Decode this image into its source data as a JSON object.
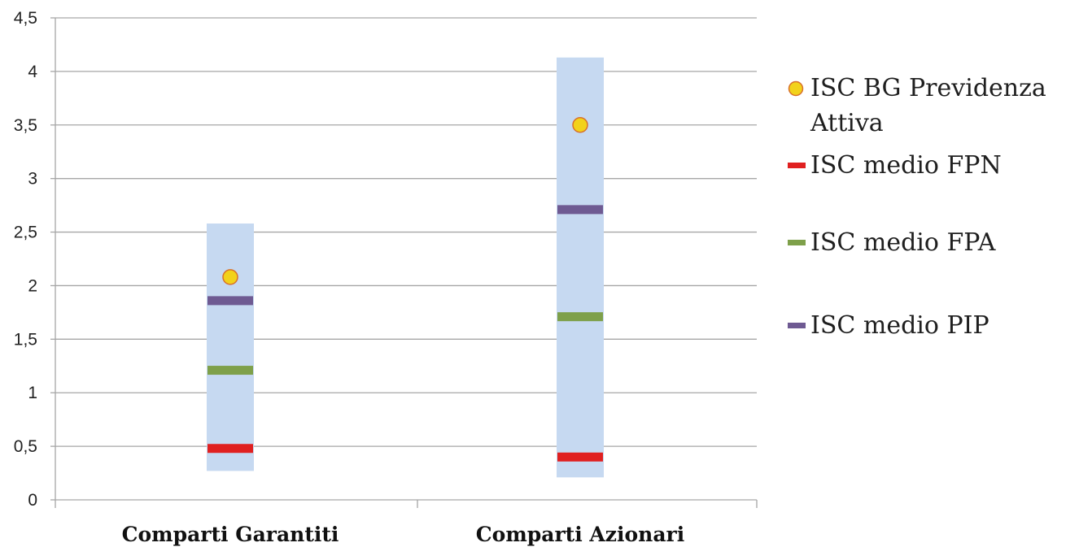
{
  "chart_data": {
    "type": "range",
    "categories": [
      "Comparti Garantiti",
      "Comparti Azionari"
    ],
    "ylim": [
      0,
      4.5
    ],
    "yticks": [
      "0",
      "0,5",
      "1",
      "1,5",
      "2",
      "2,5",
      "3",
      "3,5",
      "4",
      "4,5"
    ],
    "ytick_values": [
      0,
      0.5,
      1,
      1.5,
      2,
      2.5,
      3,
      3.5,
      4,
      4.5
    ],
    "grid": true,
    "legend_position": "right",
    "ranges": [
      {
        "category": "Comparti Garantiti",
        "min": 0.27,
        "max": 2.58
      },
      {
        "category": "Comparti Azionari",
        "min": 0.21,
        "max": 4.13
      }
    ],
    "series": [
      {
        "name": "ISC BG Previdenza Attiva",
        "marker": "circle",
        "color": "#f2d21b",
        "values": [
          2.08,
          3.5
        ]
      },
      {
        "name": "ISC medio FPN",
        "marker": "dash",
        "color": "#e02020",
        "values": [
          0.48,
          0.4
        ]
      },
      {
        "name": "ISC medio FPA",
        "marker": "dash",
        "color": "#7ea04a",
        "values": [
          1.21,
          1.71
        ]
      },
      {
        "name": "ISC medio PIP",
        "marker": "dash",
        "color": "#6e5a92",
        "values": [
          1.86,
          2.71
        ]
      }
    ],
    "colors": {
      "range": "#c6d9f1",
      "grid": "#a6a6a6",
      "axis": "#a6a6a6",
      "circle_stroke": "#d8712b"
    }
  },
  "legend": {
    "items": [
      {
        "label_lines": [
          "ISC BG Previdenza",
          "Attiva"
        ],
        "marker": "circle",
        "color": "#f2d21b"
      },
      {
        "label_lines": [
          "ISC medio FPN"
        ],
        "marker": "dash",
        "color": "#e02020"
      },
      {
        "label_lines": [
          "ISC medio FPA"
        ],
        "marker": "dash",
        "color": "#7ea04a"
      },
      {
        "label_lines": [
          "ISC medio PIP"
        ],
        "marker": "dash",
        "color": "#6e5a92"
      }
    ]
  }
}
